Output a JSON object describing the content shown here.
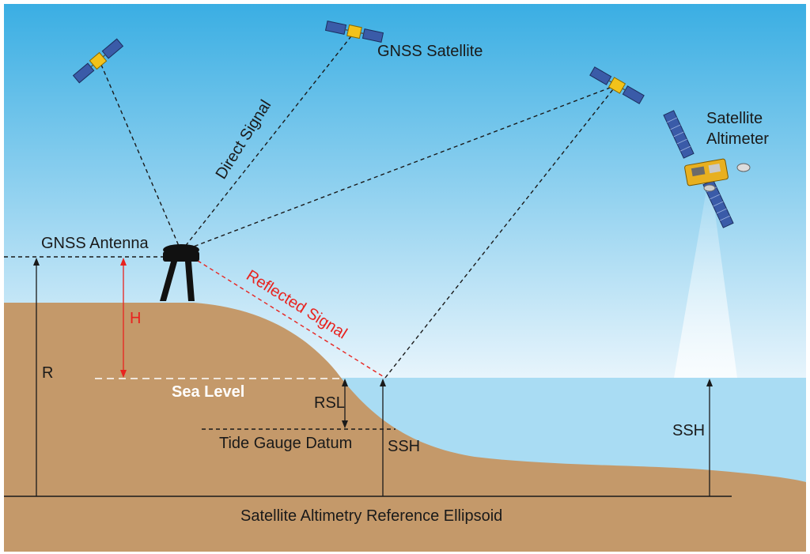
{
  "colors": {
    "sky_top": "#3aaee3",
    "sky_bottom": "#e9f5fc",
    "sea": "#a9dcf3",
    "ground": "#c4996a",
    "signal_red": "#e8231f",
    "line_dark": "#1a1a1a"
  },
  "labels": {
    "gnss_satellite": "GNSS Satellite",
    "satellite_altimeter_line1": "Satellite",
    "satellite_altimeter_line2": "Altimeter",
    "direct_signal": "Direct Signal",
    "gnss_antenna": "GNSS Antenna",
    "reflected_signal": "Reflected Signal",
    "h": "H",
    "r": "R",
    "sea_level": "Sea Level",
    "rsl": "RSL",
    "tide_gauge_datum": "Tide Gauge Datum",
    "ssh_left": "SSH",
    "ssh_right": "SSH",
    "ellipsoid": "Satellite Altimetry Reference Ellipsoid"
  },
  "icons": {
    "gnss_satellite": "gnss-satellite-icon",
    "altimeter_satellite": "altimeter-satellite-icon",
    "antenna": "gnss-antenna-icon"
  }
}
